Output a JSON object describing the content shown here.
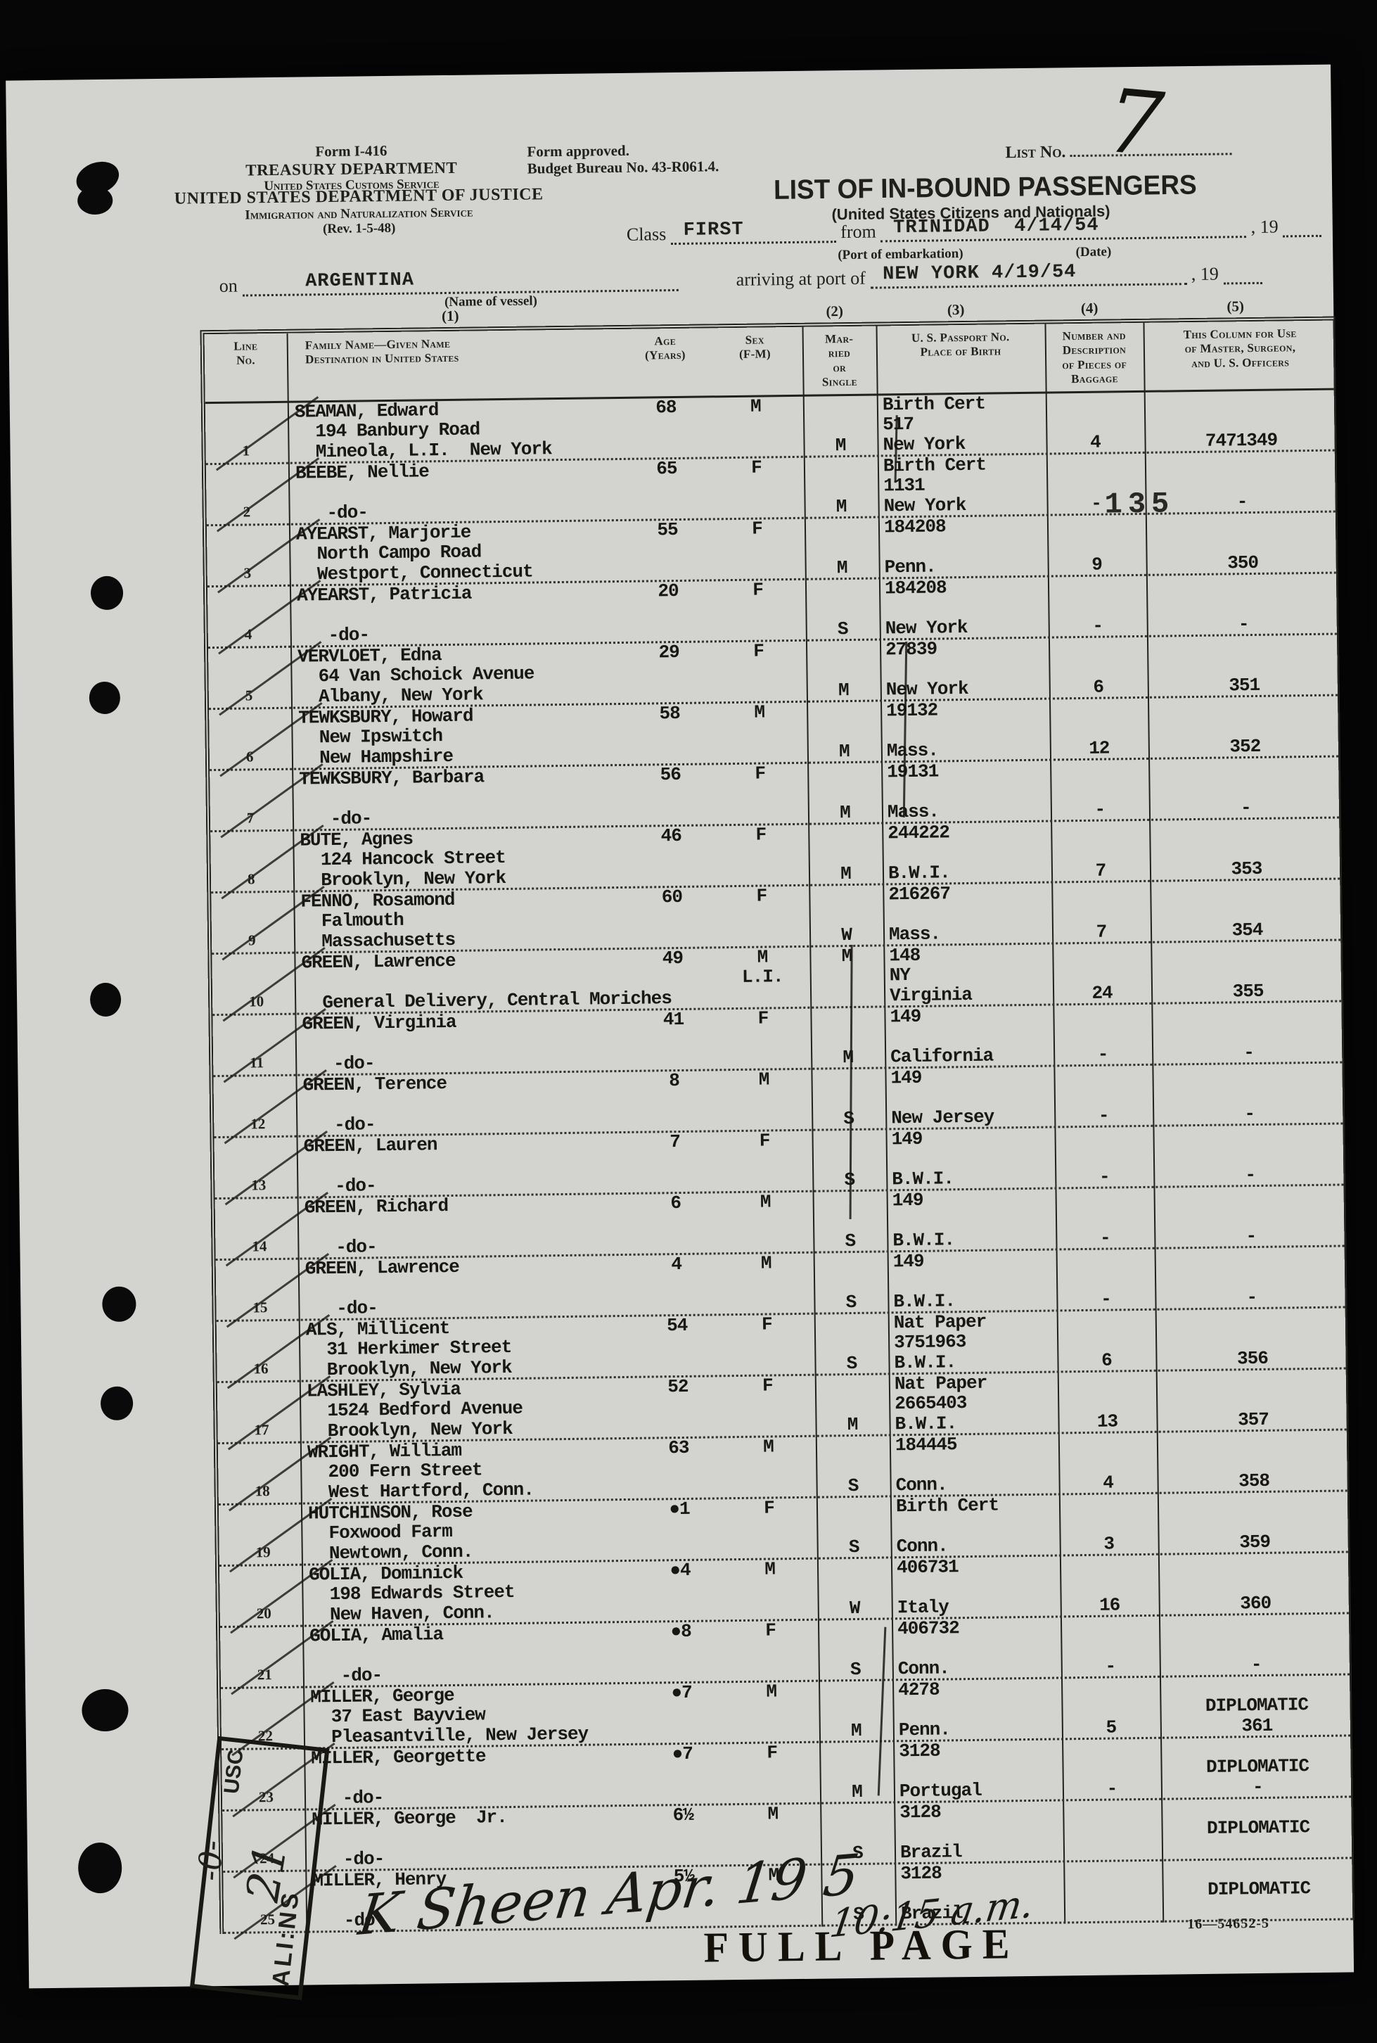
{
  "page": {
    "form_id": "Form I-416",
    "dept1": "TREASURY DEPARTMENT",
    "dept2": "United States Customs Service",
    "doj": "UNITED STATES DEPARTMENT OF JUSTICE",
    "ins": "Immigration and Naturalization Service",
    "rev": "(Rev. 1-5-48)",
    "approved1": "Form approved.",
    "approved2": "Budget Bureau No. 43-R061.4.",
    "list_no_label": "List No.",
    "list_no_value": "7",
    "title": "LIST OF IN-BOUND PASSENGERS",
    "subtitle": "(United States Citizens and Nationals)",
    "class_label": "Class",
    "class_value": "FIRST",
    "from_label": "from",
    "from_value": "TRINIDAD  4/14/54",
    "port_caption": "(Port of embarkation)",
    "date_caption": "(Date)",
    "year_19": ", 19",
    "on_label": "on",
    "vessel_value": "ARGENTINA",
    "vessel_caption": "(Name of vessel)",
    "arriving_label": "arriving at port of",
    "port_value": "NEW YORK 4/19/54",
    "stamp_135": "135",
    "signature": "K Sheen  Apr. 19 5",
    "sig_time": "10:15 a.m.",
    "full_page_stamp": "FULL PAGE",
    "footer_code": "16—54652-5",
    "stamp_aliens": "ALI:NS",
    "stamp_usc": "USC",
    "stamp_hand1": "-0-",
    "stamp_hand2": "21"
  },
  "table": {
    "col_groups": [
      "(1)",
      "(2)",
      "(3)",
      "(4)",
      "(5)"
    ],
    "headers": {
      "lineno": "Line\nNo.",
      "name": "Family Name—Given Name\nDestination in United States",
      "age": "Age\n(Years)",
      "sex": "Sex\n(F-M)",
      "married": "Mar-\nried\nor\nSingle",
      "pp": "U. S. Passport No.\nPlace of Birth",
      "bag": "Number and Description\nof Pieces of\nBaggage",
      "off": "This Column for Use\nof Master, Surgeon,\nand U. S. Officers"
    }
  },
  "passengers": [
    {
      "no": "1",
      "lines": [
        [
          "SEAMAN, Edward",
          "68",
          "M",
          "",
          "Birth Cert",
          "",
          ""
        ],
        [
          "  194 Banbury Road",
          "",
          "",
          "",
          "517",
          "",
          ""
        ],
        [
          "  Mineola, L.I.  New York",
          "",
          "",
          "M",
          "New York",
          "4",
          "7471349"
        ]
      ]
    },
    {
      "no": "2",
      "lines": [
        [
          "BEEBE, Nellie",
          "65",
          "F",
          "",
          "Birth Cert",
          "",
          ""
        ],
        [
          "",
          "",
          "",
          "",
          "1131",
          "",
          ""
        ],
        [
          "   -do-",
          "",
          "",
          "M",
          "New York",
          "-",
          "-"
        ]
      ]
    },
    {
      "no": "3",
      "lines": [
        [
          "AYEARST, Marjorie",
          "55",
          "F",
          "",
          "184208",
          "",
          ""
        ],
        [
          "  North Campo Road",
          "",
          "",
          "",
          "",
          "",
          ""
        ],
        [
          "  Westport, Connecticut",
          "",
          "",
          "M",
          "Penn.",
          "9",
          "350"
        ]
      ]
    },
    {
      "no": "4",
      "lines": [
        [
          "AYEARST, Patricia",
          "20",
          "F",
          "",
          "184208",
          "",
          ""
        ],
        [
          "   -do-",
          "",
          "",
          "S",
          "New York",
          "-",
          "-"
        ]
      ]
    },
    {
      "no": "5",
      "lines": [
        [
          "VERVLOET, Edna",
          "29",
          "F",
          "",
          "27839",
          "",
          ""
        ],
        [
          "  64 Van Schoick Avenue",
          "",
          "",
          "",
          "",
          "",
          ""
        ],
        [
          "  Albany, New York",
          "",
          "",
          "M",
          "New York",
          "6",
          "351"
        ]
      ]
    },
    {
      "no": "6",
      "lines": [
        [
          "TEWKSBURY, Howard",
          "58",
          "M",
          "",
          "19132",
          "",
          ""
        ],
        [
          "  New Ipswitch",
          "",
          "",
          "",
          "",
          "",
          ""
        ],
        [
          "  New Hampshire",
          "",
          "",
          "M",
          "Mass.",
          "12",
          "352"
        ]
      ]
    },
    {
      "no": "7",
      "lines": [
        [
          "TEWKSBURY, Barbara",
          "56",
          "F",
          "",
          "19131",
          "",
          ""
        ],
        [
          "   -do-",
          "",
          "",
          "M",
          "Mass.",
          "-",
          "-"
        ]
      ]
    },
    {
      "no": "8",
      "lines": [
        [
          "BUTE, Agnes",
          "46",
          "F",
          "",
          "244222",
          "",
          ""
        ],
        [
          "  124 Hancock Street",
          "",
          "",
          "",
          "",
          "",
          ""
        ],
        [
          "  Brooklyn, New York",
          "",
          "",
          "M",
          "B.W.I.",
          "7",
          "353"
        ]
      ]
    },
    {
      "no": "9",
      "lines": [
        [
          "FENNO, Rosamond",
          "60",
          "F",
          "",
          "216267",
          "",
          ""
        ],
        [
          "  Falmouth",
          "",
          "",
          "",
          "",
          "",
          ""
        ],
        [
          "  Massachusetts",
          "",
          "",
          "W",
          "Mass.",
          "7",
          "354"
        ]
      ]
    },
    {
      "no": "10",
      "lines": [
        [
          "GREEN, Lawrence",
          "49",
          "M",
          "M",
          "148",
          "",
          ""
        ],
        [
          "",
          "",
          "L.I.",
          "",
          "NY",
          "",
          ""
        ],
        [
          "  General Delivery, Central Moriches",
          "",
          "",
          "",
          "Virginia",
          "24",
          "355"
        ]
      ]
    },
    {
      "no": "11",
      "lines": [
        [
          "GREEN, Virginia",
          "41",
          "F",
          "",
          "149",
          "",
          ""
        ],
        [
          "   -do-",
          "",
          "",
          "M",
          "California",
          "-",
          "-"
        ]
      ]
    },
    {
      "no": "12",
      "lines": [
        [
          "GREEN, Terence",
          "8",
          "M",
          "",
          "149",
          "",
          ""
        ],
        [
          "   -do-",
          "",
          "",
          "S",
          "New Jersey",
          "-",
          "-"
        ]
      ]
    },
    {
      "no": "13",
      "lines": [
        [
          "GREEN, Lauren",
          "7",
          "F",
          "",
          "149",
          "",
          ""
        ],
        [
          "   -do-",
          "",
          "",
          "S",
          "B.W.I.",
          "-",
          "-"
        ]
      ]
    },
    {
      "no": "14",
      "lines": [
        [
          "GREEN, Richard",
          "6",
          "M",
          "",
          "149",
          "",
          ""
        ],
        [
          "   -do-",
          "",
          "",
          "S",
          "B.W.I.",
          "-",
          "-"
        ]
      ]
    },
    {
      "no": "15",
      "lines": [
        [
          "GREEN, Lawrence",
          "4",
          "M",
          "",
          "149",
          "",
          ""
        ],
        [
          "   -do-",
          "",
          "",
          "S",
          "B.W.I.",
          "-",
          "-"
        ]
      ]
    },
    {
      "no": "16",
      "lines": [
        [
          "ALS, Millicent",
          "54",
          "F",
          "",
          "Nat Paper",
          "",
          ""
        ],
        [
          "  31 Herkimer Street",
          "",
          "",
          "",
          "3751963",
          "",
          ""
        ],
        [
          "  Brooklyn, New York",
          "",
          "",
          "S",
          "B.W.I.",
          "6",
          "356"
        ]
      ]
    },
    {
      "no": "17",
      "lines": [
        [
          "LASHLEY, Sylvia",
          "52",
          "F",
          "",
          "Nat Paper",
          "",
          ""
        ],
        [
          "  1524 Bedford Avenue",
          "",
          "",
          "",
          "2665403",
          "",
          ""
        ],
        [
          "  Brooklyn, New York",
          "",
          "",
          "M",
          "B.W.I.",
          "13",
          "357"
        ]
      ]
    },
    {
      "no": "18",
      "lines": [
        [
          "WRIGHT, William",
          "63",
          "M",
          "",
          "184445",
          "",
          ""
        ],
        [
          "  200 Fern Street",
          "",
          "",
          "",
          "",
          "",
          ""
        ],
        [
          "  West Hartford, Conn.",
          "",
          "",
          "S",
          "Conn.",
          "4",
          "358"
        ]
      ]
    },
    {
      "no": "19",
      "lines": [
        [
          "HUTCHINSON, Rose",
          "●1",
          "F",
          "",
          "Birth Cert",
          "",
          ""
        ],
        [
          "  Foxwood Farm",
          "",
          "",
          "",
          "",
          "",
          ""
        ],
        [
          "  Newtown, Conn.",
          "",
          "",
          "S",
          "Conn.",
          "3",
          "359"
        ]
      ]
    },
    {
      "no": "20",
      "lines": [
        [
          "GOLIA, Dominick",
          "●4",
          "M",
          "",
          "406731",
          "",
          ""
        ],
        [
          "  198 Edwards Street",
          "",
          "",
          "",
          "",
          "",
          ""
        ],
        [
          "  New Haven, Conn.",
          "",
          "",
          "W",
          "Italy",
          "16",
          "360"
        ]
      ]
    },
    {
      "no": "21",
      "lines": [
        [
          "GOLIA, Amalia",
          "●8",
          "F",
          "",
          "406732",
          "",
          ""
        ],
        [
          "",
          "",
          "",
          "",
          "",
          "",
          ""
        ],
        [
          "   -do-",
          "",
          "",
          "S",
          "Conn.",
          "-",
          "-"
        ]
      ]
    },
    {
      "no": "22",
      "lines": [
        [
          "MILLER, George",
          "●7",
          "M",
          "",
          "4278",
          "",
          ""
        ],
        [
          "  37 East Bayview",
          "",
          "",
          "",
          "",
          "",
          "DIPLOMATIC"
        ],
        [
          "  Pleasantville, New Jersey",
          "",
          "",
          "M",
          "Penn.",
          "5",
          "361"
        ]
      ]
    },
    {
      "no": "23",
      "lines": [
        [
          "MILLER, Georgette",
          "●7",
          "F",
          "",
          "3128",
          "",
          ""
        ],
        [
          "",
          "",
          "",
          "",
          "",
          "",
          "DIPLOMATIC"
        ],
        [
          "   -do-",
          "",
          "",
          "M",
          "Portugal",
          "-",
          "-"
        ]
      ]
    },
    {
      "no": "24",
      "lines": [
        [
          "MILLER, George  Jr.",
          "6½",
          "M",
          "",
          "3128",
          "",
          ""
        ],
        [
          "",
          "",
          "",
          "",
          "",
          "",
          "DIPLOMATIC"
        ],
        [
          "   -do-",
          "",
          "",
          "S",
          "Brazil",
          "",
          ""
        ]
      ]
    },
    {
      "no": "25",
      "lines": [
        [
          "MILLER, Henry",
          "5½",
          "M",
          "",
          "3128",
          "",
          ""
        ],
        [
          "",
          "",
          "",
          "",
          "",
          "",
          "DIPLOMATIC"
        ],
        [
          "   -do-",
          "",
          "",
          "S",
          "Brazil",
          "",
          ""
        ]
      ]
    }
  ]
}
